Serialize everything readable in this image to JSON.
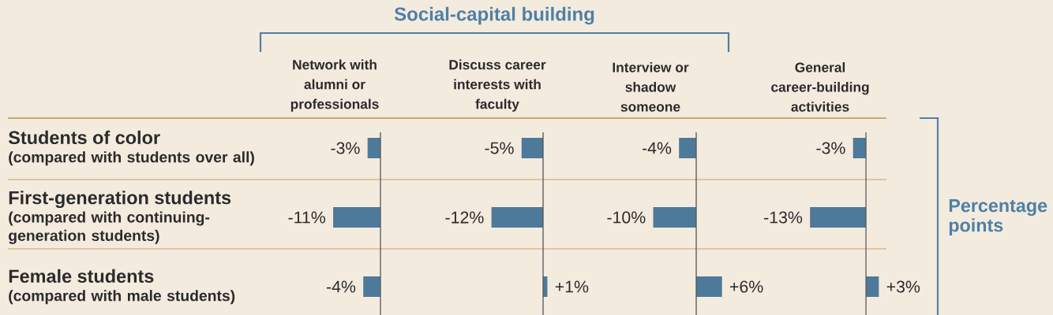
{
  "chart_data": [
    {
      "type": "bar",
      "orientation": "horizontal",
      "title": "Network with alumni or professionals",
      "categories": [
        "**Students of color** (compared with students over all)",
        "**First-generation students** (compared with continuing-generation students)",
        "**Female students** (compared with male students)"
      ],
      "values": [
        -3,
        -11,
        -4
      ],
      "value_labels": [
        "-3%",
        "-11%",
        "-4%"
      ],
      "color": "#4d7a9a",
      "tick_labels": "y",
      "annotations": [
        "Social-capital building"
      ]
    },
    {
      "type": "bar",
      "orientation": "horizontal",
      "title": "Discuss career interests with faculty",
      "categories": [
        null,
        null,
        null
      ],
      "values": [
        -5,
        -12,
        1
      ],
      "value_labels": [
        "-5%",
        "-12%",
        "+1%"
      ],
      "color": "#4d7a9a",
      "tick_labels": false
    },
    {
      "type": "bar",
      "orientation": "horizontal",
      "title": "Interview or shadow someone",
      "categories": [
        null,
        null,
        null
      ],
      "values": [
        -4,
        -10,
        6
      ],
      "value_labels": [
        "-4%",
        "-10%",
        "+6%"
      ],
      "color": "#4d7a9a",
      "tick_labels": false
    },
    {
      "type": "bar",
      "orientation": "horizontal",
      "title": "General career-building activities",
      "categories": [
        null,
        null,
        null
      ],
      "values": [
        -3,
        -13,
        3
      ],
      "value_labels": [
        "-3%",
        "-13%",
        "+3%"
      ],
      "color": "#4d7a9a",
      "tick_labels": false,
      "annotations": [
        "Percentage points"
      ]
    }
  ]
}
